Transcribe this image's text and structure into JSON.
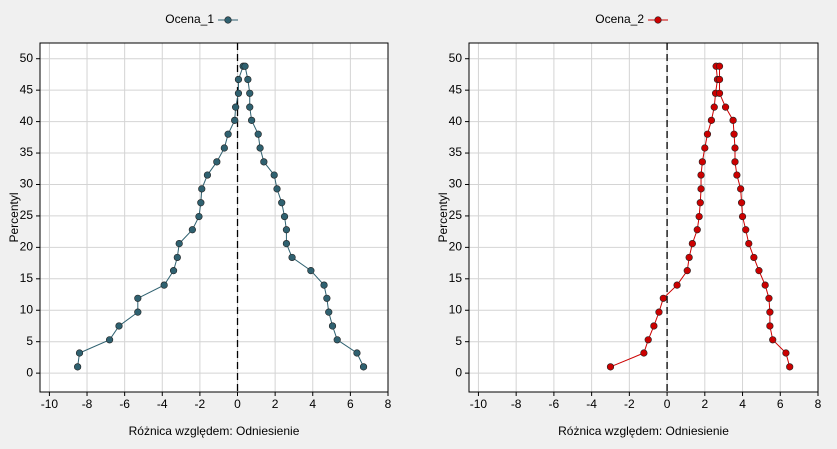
{
  "chart_data": [
    {
      "type": "line",
      "xlabel": "Różnica względem: Odniesienie",
      "ylabel": "Percentyl",
      "xlim": [
        -10.5,
        8
      ],
      "ylim": [
        -3,
        52.5
      ],
      "xticks": [
        -10,
        -8,
        -6,
        -4,
        -2,
        0,
        2,
        4,
        6,
        8
      ],
      "yticks": [
        0,
        5,
        10,
        15,
        20,
        25,
        30,
        35,
        40,
        45,
        50
      ],
      "grid": true,
      "series": [
        {
          "name": "Ocena_1",
          "color": "#2f6170",
          "x": [
            -8.5,
            -8.4,
            -6.8,
            -6.3,
            -5.3,
            -5.3,
            -3.9,
            -3.4,
            -3.2,
            -3.1,
            -2.4,
            -2.05,
            -1.95,
            -1.9,
            -1.6,
            -1.1,
            -0.7,
            -0.5,
            -0.15,
            -0.1,
            0.05,
            0.05,
            0.3,
            0.4,
            0.55,
            0.65,
            0.65,
            0.75,
            1.1,
            1.2,
            1.4,
            1.95,
            2.1,
            2.35,
            2.5,
            2.6,
            2.6,
            2.9,
            3.9,
            4.6,
            4.75,
            4.85,
            5.05,
            5.3,
            6.35,
            6.7
          ],
          "values": [
            1,
            3.2,
            5.3,
            7.5,
            9.7,
            11.9,
            14,
            16.3,
            18.4,
            20.6,
            22.8,
            24.9,
            27.1,
            29.3,
            31.5,
            33.6,
            35.8,
            38,
            40.2,
            42.3,
            44.5,
            46.7,
            48.8,
            48.8,
            46.7,
            44.5,
            42.3,
            40.2,
            38,
            35.8,
            33.6,
            31.5,
            29.3,
            27.1,
            24.9,
            22.8,
            20.6,
            18.4,
            16.3,
            14,
            11.9,
            9.7,
            7.5,
            5.3,
            3.2,
            1
          ]
        }
      ]
    },
    {
      "type": "line",
      "xlabel": "Różnica względem: Odniesienie",
      "ylabel": "Percentyl",
      "xlim": [
        -10.5,
        8
      ],
      "ylim": [
        -3,
        52.5
      ],
      "xticks": [
        -10,
        -8,
        -6,
        -4,
        -2,
        0,
        2,
        4,
        6,
        8
      ],
      "yticks": [
        0,
        5,
        10,
        15,
        20,
        25,
        30,
        35,
        40,
        45,
        50
      ],
      "grid": true,
      "series": [
        {
          "name": "Ocena_2",
          "color": "#cc0000",
          "x": [
            -3.0,
            -1.23,
            -1.0,
            -0.7,
            -0.43,
            -0.2,
            0.53,
            1.07,
            1.17,
            1.34,
            1.6,
            1.7,
            1.76,
            1.8,
            1.8,
            1.87,
            2.0,
            2.14,
            2.35,
            2.5,
            2.57,
            2.67,
            2.6,
            2.78,
            2.78,
            2.78,
            3.1,
            3.5,
            3.55,
            3.6,
            3.6,
            3.7,
            3.9,
            3.95,
            4.0,
            4.17,
            4.33,
            4.6,
            4.87,
            5.2,
            5.4,
            5.45,
            5.45,
            5.6,
            6.3,
            6.5
          ],
          "values": [
            1,
            3.2,
            5.3,
            7.5,
            9.7,
            11.9,
            14,
            16.3,
            18.4,
            20.6,
            22.8,
            24.9,
            27.1,
            29.3,
            31.5,
            33.6,
            35.8,
            38,
            40.2,
            42.3,
            44.5,
            46.7,
            48.8,
            48.8,
            46.7,
            44.5,
            42.3,
            40.2,
            38,
            35.8,
            33.6,
            31.5,
            29.3,
            27.1,
            24.9,
            22.8,
            20.6,
            18.4,
            16.3,
            14,
            11.9,
            9.7,
            7.5,
            5.3,
            3.2,
            1
          ]
        }
      ]
    }
  ]
}
